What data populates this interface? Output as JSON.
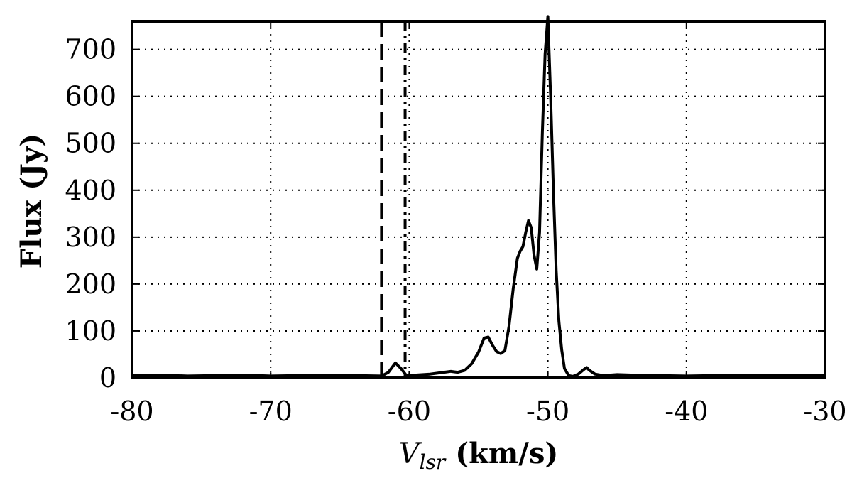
{
  "chart_data": {
    "type": "line",
    "xlabel_symbol": "V",
    "xlabel_subscript": "lsr",
    "xlabel_units": " (km/s)",
    "ylabel": "Flux (Jy)",
    "xlim": [
      -80,
      -30
    ],
    "ylim": [
      0,
      760
    ],
    "xticks": [
      -80,
      -70,
      -60,
      -50,
      -40,
      -30
    ],
    "yticks": [
      0,
      100,
      200,
      300,
      400,
      500,
      600,
      700
    ],
    "grid": true,
    "grid_style": "dotted",
    "markers": [
      {
        "x": -62.0,
        "style": "dashed"
      },
      {
        "x": -60.3,
        "style": "dash-dot"
      }
    ],
    "series": [
      {
        "x": [
          -80,
          -78,
          -76,
          -74,
          -72,
          -70,
          -68,
          -66,
          -64,
          -62,
          -61.5,
          -61.0,
          -60.6,
          -60.2,
          -59.5,
          -58.5,
          -57.5,
          -57.0,
          -56.5,
          -56.0,
          -55.5,
          -55.0,
          -54.6,
          -54.3,
          -54.0,
          -53.7,
          -53.4,
          -53.1,
          -52.8,
          -52.5,
          -52.2,
          -52.0,
          -51.8,
          -51.6,
          -51.4,
          -51.2,
          -51.0,
          -50.8,
          -50.6,
          -50.4,
          -50.2,
          -50.0,
          -49.8,
          -49.6,
          -49.4,
          -49.2,
          -49.0,
          -48.8,
          -48.5,
          -48.2,
          -47.8,
          -47.4,
          -47.2,
          -47.0,
          -46.6,
          -46.0,
          -45.0,
          -44.0,
          -42.0,
          -40.0,
          -38.0,
          -36.0,
          -34.0,
          -32.0,
          -30.0
        ],
        "y": [
          5,
          6,
          4,
          5,
          6,
          4,
          5,
          6,
          5,
          4,
          12,
          32,
          20,
          5,
          6,
          8,
          12,
          14,
          12,
          16,
          30,
          55,
          85,
          87,
          70,
          56,
          52,
          58,
          110,
          190,
          255,
          270,
          280,
          310,
          335,
          320,
          262,
          232,
          310,
          520,
          690,
          770,
          600,
          400,
          230,
          120,
          60,
          20,
          5,
          3,
          8,
          18,
          22,
          16,
          8,
          5,
          7,
          6,
          5,
          4,
          5,
          5,
          6,
          5,
          5
        ]
      }
    ]
  }
}
